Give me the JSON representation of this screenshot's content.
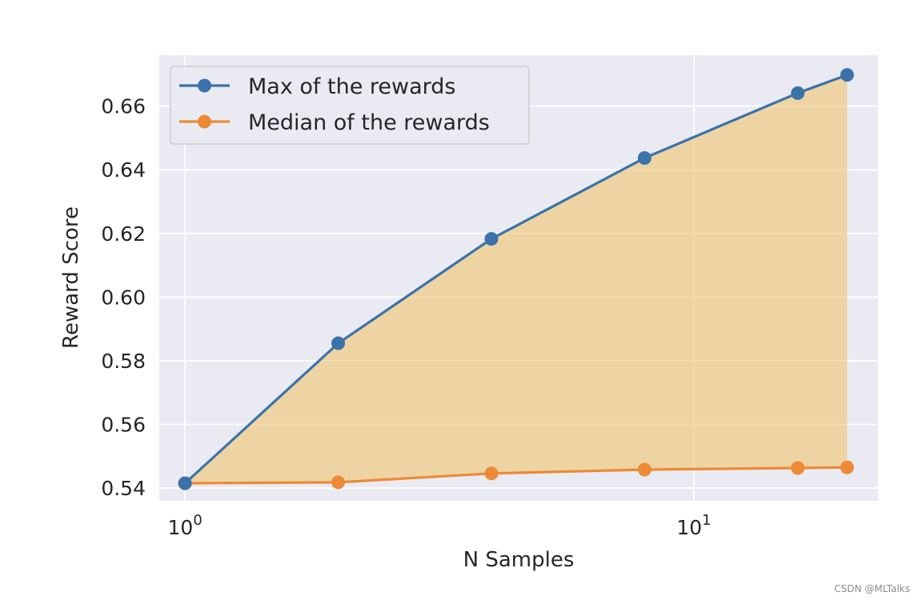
{
  "chart_data": {
    "type": "area",
    "xlabel": "N Samples",
    "ylabel": "Reward Score",
    "xscale": "log",
    "xlim": [
      0.89,
      23.0
    ],
    "ylim": [
      0.536,
      0.676
    ],
    "grid": true,
    "legend_position": "top-left",
    "x_ticks": [
      {
        "value": 1,
        "base": "10",
        "exp": "0"
      },
      {
        "value": 10,
        "base": "10",
        "exp": "1"
      }
    ],
    "y_ticks": [
      {
        "value": 0.54,
        "label": "0.54"
      },
      {
        "value": 0.56,
        "label": "0.56"
      },
      {
        "value": 0.58,
        "label": "0.58"
      },
      {
        "value": 0.6,
        "label": "0.60"
      },
      {
        "value": 0.62,
        "label": "0.62"
      },
      {
        "value": 0.64,
        "label": "0.64"
      },
      {
        "value": 0.66,
        "label": "0.66"
      }
    ],
    "x": [
      1,
      2,
      4,
      8,
      16,
      20
    ],
    "series": [
      {
        "name": "Max of the rewards",
        "color": "#3b72aa",
        "values": [
          0.5415,
          0.5855,
          0.6183,
          0.6437,
          0.6641,
          0.6698
        ]
      },
      {
        "name": "Median of the rewards",
        "color": "#ec8a36",
        "values": [
          0.5415,
          0.5418,
          0.5446,
          0.5458,
          0.5463,
          0.5465
        ]
      }
    ],
    "fill_between": {
      "color": "#f0c46e",
      "opacity": 0.6
    }
  },
  "watermark": "CSDN @MLTalks"
}
